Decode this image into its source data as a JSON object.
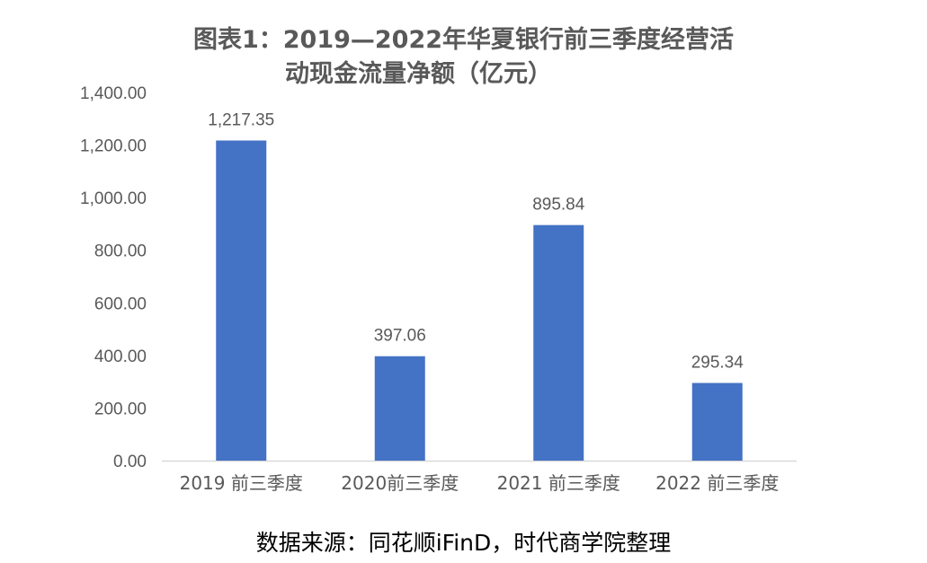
{
  "chart_data": {
    "type": "bar",
    "title_line1": "图表1：2019—2022年华夏银行前三季度经营活",
    "title_line2": "动现金流量净额（亿元）",
    "categories": [
      "2019 前三季度",
      "2020前三季度",
      "2021 前三季度",
      "2022 前三季度"
    ],
    "values": [
      1217.35,
      397.06,
      895.84,
      295.34
    ],
    "value_labels": [
      "1,217.35",
      "397.06",
      "895.84",
      "295.34"
    ],
    "ylim": [
      0,
      1400
    ],
    "yticks": [
      0,
      200,
      400,
      600,
      800,
      1000,
      1200,
      1400
    ],
    "ytick_labels": [
      "0.00",
      "200.00",
      "400.00",
      "600.00",
      "800.00",
      "1,000.00",
      "1,200.00",
      "1,400.00"
    ],
    "xlabel": "",
    "ylabel": "",
    "grid": false,
    "colors": {
      "bar": "#4472C4",
      "axis_text": "#595959",
      "axis_line": "#D9D9D9"
    }
  },
  "source_note": "数据来源：同花顺iFinD，时代商学院整理"
}
